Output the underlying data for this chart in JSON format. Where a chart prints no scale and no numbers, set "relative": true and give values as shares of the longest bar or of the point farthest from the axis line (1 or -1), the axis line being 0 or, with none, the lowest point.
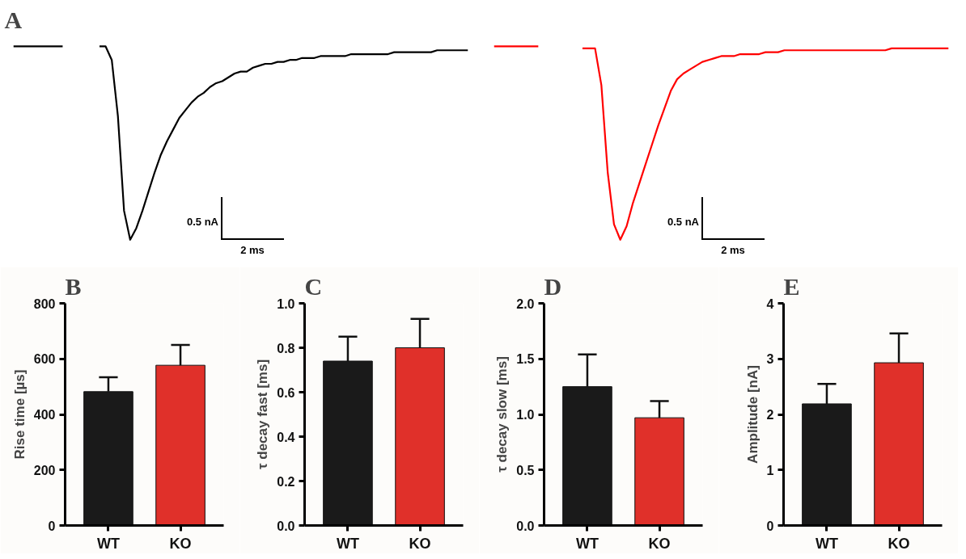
{
  "chart_data": [
    {
      "type": "line",
      "title": "A",
      "relative": true,
      "tick_labels": false,
      "annotations": [
        "0.5 nA",
        "2 ms"
      ],
      "categories": [
        null,
        null,
        null,
        null,
        null,
        null,
        null,
        null,
        null,
        null,
        null,
        null,
        null,
        null,
        null,
        null,
        null,
        null,
        null,
        null,
        null,
        null,
        null,
        null,
        null,
        null,
        null,
        null,
        null,
        null,
        null,
        null,
        null,
        null,
        null,
        null,
        null,
        null,
        null,
        null,
        null,
        null,
        null,
        null,
        null,
        null,
        null,
        null,
        null,
        null,
        null,
        null,
        null,
        null,
        null,
        null,
        null,
        null,
        null,
        null,
        null,
        null,
        null,
        null,
        null,
        null,
        null,
        null,
        null,
        null,
        null,
        null,
        null,
        null,
        null
      ],
      "series": [
        {
          "color": "#000000",
          "values": [
            1,
            1,
            1,
            1,
            1,
            1,
            1,
            1,
            1,
            null,
            null,
            null,
            null,
            null,
            null,
            null,
            null,
            null,
            null,
            null,
            null,
            null,
            null,
            null,
            null,
            null,
            null,
            null,
            null,
            null,
            null,
            null,
            null,
            null,
            null,
            null,
            null,
            null,
            null,
            null,
            null,
            null,
            null,
            null,
            null,
            null,
            null,
            null,
            null,
            null,
            null,
            null,
            null,
            null,
            null,
            null,
            null,
            null,
            null,
            null,
            null,
            null,
            null,
            null,
            null,
            null,
            null,
            null,
            null,
            null,
            null,
            null,
            null,
            null,
            null
          ]
        },
        {
          "color": "#000000",
          "values": [
            null,
            null,
            null,
            null,
            null,
            null,
            null,
            null,
            null,
            null,
            null,
            null,
            null,
            null,
            1,
            1,
            0.93,
            0.64,
            0.15,
            0,
            0.06,
            0.15,
            0.25,
            0.35,
            0.44,
            0.51,
            0.57,
            0.63,
            0.67,
            0.71,
            0.74,
            0.76,
            0.79,
            0.81,
            0.82,
            0.84,
            0.86,
            0.87,
            0.87,
            0.89,
            0.9,
            0.91,
            0.91,
            0.92,
            0.92,
            0.93,
            0.93,
            0.94,
            0.94,
            0.94,
            0.95,
            0.95,
            0.95,
            0.95,
            0.95,
            0.96,
            0.96,
            0.96,
            0.96,
            0.96,
            0.96,
            0.96,
            0.97,
            0.97,
            0.97,
            0.97,
            0.97,
            0.97,
            0.97,
            0.98,
            0.98,
            0.98,
            0.98,
            0.98,
            0.98
          ]
        }
      ]
    },
    {
      "type": "line",
      "relative": true,
      "tick_labels": false,
      "annotations": [
        "0.5 nA",
        "2 ms"
      ],
      "categories": [
        null,
        null,
        null,
        null,
        null,
        null,
        null,
        null,
        null,
        null,
        null,
        null,
        null,
        null,
        null,
        null,
        null,
        null,
        null,
        null,
        null,
        null,
        null,
        null,
        null,
        null,
        null,
        null,
        null,
        null,
        null,
        null,
        null,
        null,
        null,
        null,
        null,
        null,
        null,
        null,
        null,
        null,
        null,
        null,
        null,
        null,
        null,
        null,
        null,
        null,
        null,
        null,
        null,
        null,
        null,
        null,
        null,
        null,
        null,
        null,
        null,
        null,
        null,
        null,
        null,
        null,
        null,
        null,
        null,
        null,
        null,
        null,
        null
      ],
      "series": [
        {
          "color": "#ff0000",
          "values": [
            1,
            1,
            1,
            1,
            1,
            1,
            1,
            1,
            null,
            null,
            null,
            null,
            null,
            null,
            null,
            null,
            null,
            null,
            null,
            null,
            null,
            null,
            null,
            null,
            null,
            null,
            null,
            null,
            null,
            null,
            null,
            null,
            null,
            null,
            null,
            null,
            null,
            null,
            null,
            null,
            null,
            null,
            null,
            null,
            null,
            null,
            null,
            null,
            null,
            null,
            null,
            null,
            null,
            null,
            null,
            null,
            null,
            null,
            null,
            null,
            null,
            null,
            null,
            null,
            null,
            null,
            null,
            null,
            null,
            null,
            null,
            null,
            null
          ]
        },
        {
          "color": "#ff0000",
          "values": [
            null,
            null,
            null,
            null,
            null,
            null,
            null,
            null,
            null,
            null,
            null,
            null,
            null,
            null,
            0.99,
            0.99,
            0.99,
            0.8,
            0.35,
            0.08,
            0,
            0.07,
            0.19,
            0.29,
            0.39,
            0.49,
            0.59,
            0.68,
            0.77,
            0.83,
            0.86,
            0.88,
            0.9,
            0.92,
            0.93,
            0.94,
            0.95,
            0.95,
            0.95,
            0.96,
            0.96,
            0.96,
            0.96,
            0.97,
            0.97,
            0.97,
            0.98,
            0.98,
            0.98,
            0.98,
            0.98,
            0.98,
            0.98,
            0.98,
            0.98,
            0.98,
            0.98,
            0.98,
            0.98,
            0.98,
            0.98,
            0.98,
            0.98,
            0.99,
            0.99,
            0.99,
            0.99,
            0.99,
            0.99,
            0.99,
            0.99,
            0.99,
            0.99
          ]
        }
      ]
    },
    {
      "type": "bar",
      "title": "B",
      "ylabel": "Rise time [µs]",
      "categories": [
        "WT",
        "KO"
      ],
      "values": [
        482,
        577
      ],
      "colors": [
        "#1a1a1a",
        "#e0302a"
      ],
      "errors": [
        [
          482,
          534
        ],
        [
          577,
          650
        ]
      ],
      "ylim": [
        0,
        800
      ],
      "yticks": [
        0,
        200,
        400,
        600,
        800
      ]
    },
    {
      "type": "bar",
      "title": "C",
      "ylabel": "τ decay fast [ms]",
      "categories": [
        "WT",
        "KO"
      ],
      "values": [
        0.74,
        0.8
      ],
      "colors": [
        "#1a1a1a",
        "#e0302a"
      ],
      "errors": [
        [
          0.74,
          0.85
        ],
        [
          0.8,
          0.93
        ]
      ],
      "ylim": [
        0,
        1
      ],
      "yticks": [
        {
          "value": 0,
          "label": "0.0"
        },
        0.2,
        0.4,
        0.6,
        0.8,
        {
          "value": 1,
          "label": "1.0"
        }
      ]
    },
    {
      "type": "bar",
      "title": "D",
      "ylabel": "τ decay slow [ms]",
      "categories": [
        "WT",
        "KO"
      ],
      "values": [
        1.25,
        0.97
      ],
      "colors": [
        "#1a1a1a",
        "#e0302a"
      ],
      "errors": [
        [
          1.25,
          1.54
        ],
        [
          0.97,
          1.12
        ]
      ],
      "ylim": [
        0,
        2
      ],
      "yticks": [
        {
          "value": 0,
          "label": "0.0"
        },
        0.5,
        {
          "value": 1,
          "label": "1.0"
        },
        1.5,
        {
          "value": 2,
          "label": "2.0"
        }
      ]
    },
    {
      "type": "bar",
      "title": "E",
      "ylabel": "Amplitude [nA]",
      "categories": [
        "WT",
        "KO"
      ],
      "values": [
        2.19,
        2.93
      ],
      "colors": [
        "#1a1a1a",
        "#e0302a"
      ],
      "errors": [
        [
          2.19,
          2.55
        ],
        [
          2.93,
          3.46
        ]
      ],
      "ylim": [
        0,
        4
      ],
      "yticks": [
        0,
        1,
        2,
        3,
        4
      ]
    }
  ]
}
